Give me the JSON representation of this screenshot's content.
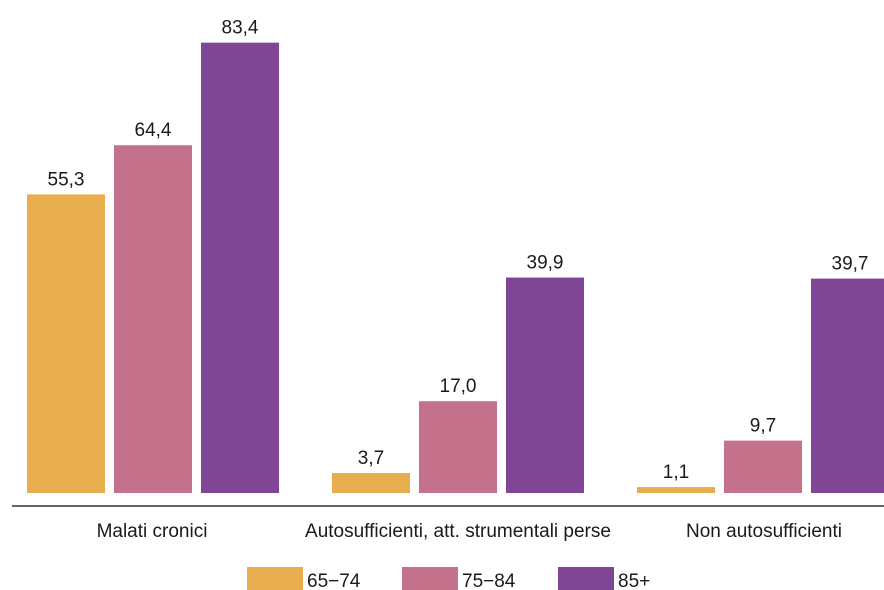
{
  "chart_data": {
    "type": "bar",
    "categories": [
      "Malati cronici",
      "Autosufficienti, att. strumentali perse",
      "Non autosufficienti"
    ],
    "series": [
      {
        "name": "65−74",
        "color": "#e8ad4f",
        "values": [
          55.3,
          3.7,
          1.1
        ],
        "labels": [
          "55,3",
          "3,7",
          "1,1"
        ]
      },
      {
        "name": "75−84",
        "color": "#c4728c",
        "values": [
          64.4,
          17.0,
          9.7
        ],
        "labels": [
          "64,4",
          "17,0",
          "9,7"
        ]
      },
      {
        "name": "85+",
        "color": "#804696",
        "values": [
          83.4,
          39.9,
          39.7
        ],
        "labels": [
          "83,4",
          "39,9",
          "39,7"
        ]
      }
    ],
    "ylim": [
      0,
      85
    ],
    "grid": false,
    "legend_position": "bottom"
  }
}
